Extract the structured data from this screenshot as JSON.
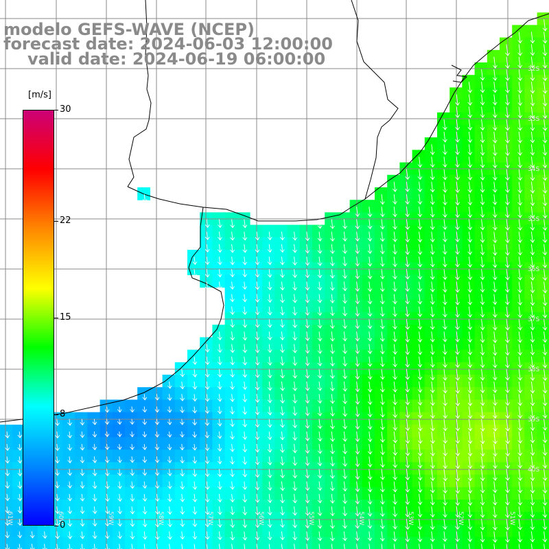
{
  "title": {
    "model": "modelo GEFS-WAVE (NCEP)",
    "forecast": "forecast date: 2024-06-03 12:00:00",
    "valid": "valid date: 2024-06-19 06:00:00"
  },
  "colorbar": {
    "unit": "[m/s]",
    "min": 0,
    "max": 30,
    "tick_values": [
      0,
      8,
      15,
      22,
      30
    ],
    "tick_labels": [
      "0",
      "8",
      "15",
      "22",
      "30"
    ],
    "stops": [
      "#0000ff",
      "#0088ff",
      "#00ffff",
      "#00ff00",
      "#ffff00",
      "#ff8800",
      "#ff0000",
      "#cc0077"
    ]
  },
  "map": {
    "lat_labels": [
      "32S",
      "33S",
      "34S",
      "35S",
      "36S",
      "37S",
      "38S",
      "39S",
      "40S"
    ],
    "lon_labels": [
      "61W",
      "60W",
      "59W",
      "58W",
      "57W",
      "56W",
      "55W",
      "54W",
      "53W",
      "52W",
      "51W"
    ],
    "colors": {
      "land": "#ffffff",
      "grid": "#888888",
      "coast": "#000000",
      "arrows": "#ffffff"
    }
  }
}
